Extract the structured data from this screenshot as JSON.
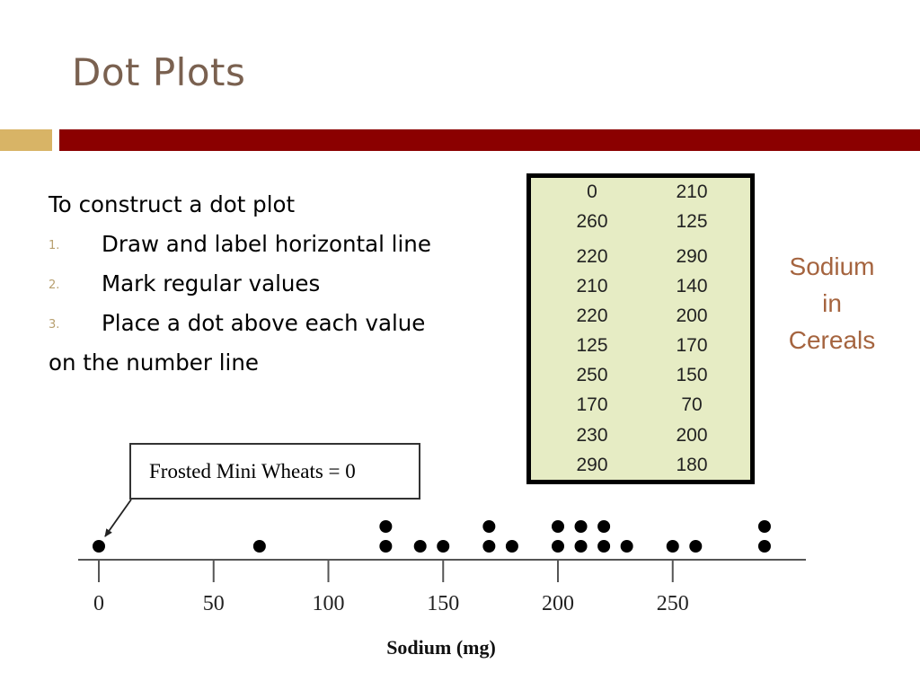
{
  "slide": {
    "title": "Dot Plots",
    "colors": {
      "title": "#7a6150",
      "bar_gold": "#d8b466",
      "bar_red": "#8b0000",
      "bullet_number": "#b8a070",
      "side_label": "#a5643f"
    }
  },
  "instructions": {
    "intro": "To construct a dot plot",
    "steps": [
      {
        "number": "1.",
        "text": "Draw and label horizontal line"
      },
      {
        "number": "2.",
        "text": "Mark regular values"
      },
      {
        "number": "3.",
        "text": "Place a dot above each value"
      }
    ],
    "outro": "on the number line"
  },
  "sodium_table": {
    "rows": [
      [
        "0",
        "210"
      ],
      [
        "260",
        "125"
      ],
      [
        "220",
        "290"
      ],
      [
        "210",
        "140"
      ],
      [
        "220",
        "200"
      ],
      [
        "125",
        "170"
      ],
      [
        "250",
        "150"
      ],
      [
        "170",
        "70"
      ],
      [
        "230",
        "200"
      ],
      [
        "290",
        "180"
      ]
    ]
  },
  "side_label": {
    "lines": [
      "Sodium",
      "in",
      "Cereals"
    ]
  },
  "callout": {
    "text": "Frosted Mini Wheats = 0"
  },
  "chart_data": {
    "type": "scatter",
    "title": "",
    "xlabel": "Sodium (mg)",
    "ylabel": "",
    "xlim": [
      0,
      290
    ],
    "x_ticks": [
      0,
      50,
      100,
      150,
      200,
      250
    ],
    "x": [
      0,
      70,
      125,
      140,
      150,
      170,
      180,
      200,
      210,
      220,
      230,
      250,
      260,
      290
    ],
    "counts": [
      1,
      1,
      2,
      1,
      1,
      2,
      1,
      2,
      2,
      2,
      1,
      1,
      1,
      2
    ],
    "grid": false,
    "legend": "none",
    "dot_color": "#000000"
  }
}
